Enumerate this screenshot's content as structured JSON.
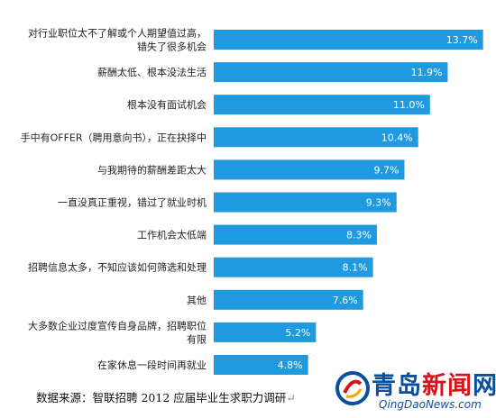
{
  "chart_data": {
    "type": "bar",
    "orientation": "horizontal",
    "categories": [
      "对行业职位太不了解或个人期望值过高，错失了很多机会",
      "薪酬太低、根本没法生活",
      "根本没有面试机会",
      "手中有OFFER（聘用意向书），正在抉择中",
      "与我期待的薪酬差距太大",
      "一直没真正重视，错过了就业时机",
      "工作机会太低端",
      "招聘信息太多，不知应该如何筛选和处理",
      "其他",
      "大多数企业过度宣传自身品牌，招聘职位有限",
      "在家休息一段时间再就业"
    ],
    "label_lines": [
      [
        "对行业职位太不了解或个人期望值过高，",
        "错失了很多机会"
      ],
      [
        "薪酬太低、根本没法生活"
      ],
      [
        "根本没有面试机会"
      ],
      [
        "手中有OFFER（聘用意向书），正在抉择中"
      ],
      [
        "与我期待的薪酬差距太大"
      ],
      [
        "一直没真正重视，错过了就业时机"
      ],
      [
        "工作机会太低端"
      ],
      [
        "招聘信息太多，不知应该如何筛选和处理"
      ],
      [
        "其他"
      ],
      [
        "大多数企业过度宣传自身品牌，招聘职位",
        "有限"
      ],
      [
        "在家休息一段时间再就业"
      ]
    ],
    "values": [
      13.7,
      11.9,
      11.0,
      10.4,
      9.7,
      9.3,
      8.3,
      8.1,
      7.6,
      5.2,
      4.8
    ],
    "value_labels": [
      "13.7%",
      "11.9%",
      "11.0%",
      "10.4%",
      "9.7%",
      "9.3%",
      "8.3%",
      "8.1%",
      "7.6%",
      "5.2%",
      "4.8%"
    ],
    "unit": "%",
    "xlim": [
      0,
      14.3
    ],
    "grid": false,
    "bar_color": "#1f9ae0",
    "title": "",
    "xlabel": "",
    "ylabel": ""
  },
  "source_note": "数据来源：智联招聘 2012 应届毕业生求职力调研",
  "source_mark": "↵",
  "watermark": {
    "name_part1": "青岛",
    "name_part2": "新闻",
    "name_part3": "网",
    "url": "QingDaoNews.com",
    "color_blue": "#0a4e9c",
    "color_red": "#d6141c"
  }
}
